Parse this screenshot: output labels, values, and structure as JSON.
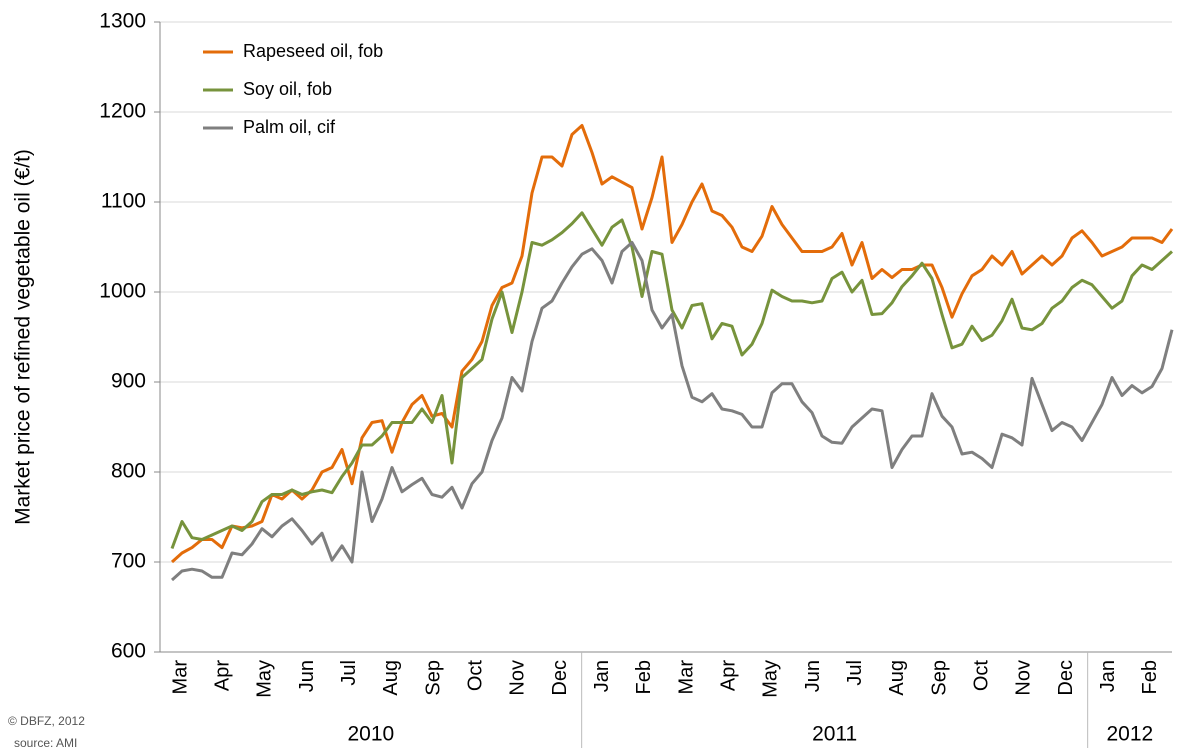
{
  "chart_data": {
    "type": "line",
    "y_label": "Market price of refined vegetable oil (€/t)",
    "ylim": [
      600,
      1300
    ],
    "yticks": [
      600,
      700,
      800,
      900,
      1000,
      1100,
      1200,
      1300
    ],
    "grid": true,
    "legend": "upper left",
    "years": [
      {
        "label": "2010",
        "months": [
          "Mar",
          "Apr",
          "May",
          "Jun",
          "Jul",
          "Aug",
          "Sep",
          "Oct",
          "Nov",
          "Dec"
        ]
      },
      {
        "label": "2011",
        "months": [
          "Jan",
          "Feb",
          "Mar",
          "Apr",
          "May",
          "Jun",
          "Jul",
          "Aug",
          "Sep",
          "Oct",
          "Nov",
          "Dec"
        ]
      },
      {
        "label": "2012",
        "months": [
          "Jan",
          "Feb"
        ]
      }
    ],
    "series": [
      {
        "name": "Rapeseed oil, fob",
        "color": "#e36c0a",
        "values": [
          700,
          710,
          716,
          725,
          725,
          716,
          740,
          738,
          740,
          745,
          775,
          770,
          780,
          770,
          780,
          800,
          805,
          825,
          787,
          838,
          855,
          857,
          822,
          855,
          875,
          885,
          862,
          865,
          850,
          912,
          925,
          945,
          985,
          1005,
          1010,
          1040,
          1110,
          1150,
          1150,
          1140,
          1175,
          1185,
          1155,
          1120,
          1128,
          1122,
          1116,
          1070,
          1105,
          1150,
          1055,
          1075,
          1100,
          1120,
          1090,
          1085,
          1072,
          1050,
          1045,
          1062,
          1095,
          1075,
          1060,
          1045,
          1045,
          1045,
          1050,
          1065,
          1030,
          1055,
          1015,
          1025,
          1016,
          1025,
          1025,
          1030,
          1030,
          1005,
          972,
          998,
          1018,
          1025,
          1040,
          1030,
          1045,
          1020,
          1030,
          1040,
          1030,
          1040,
          1060,
          1068,
          1055,
          1040,
          1045,
          1050,
          1060,
          1060,
          1060,
          1055,
          1070
        ]
      },
      {
        "name": "Soy oil, fob",
        "color": "#77933c",
        "values": [
          715,
          745,
          727,
          725,
          730,
          735,
          740,
          735,
          745,
          767,
          775,
          775,
          780,
          775,
          778,
          780,
          777,
          795,
          810,
          830,
          830,
          840,
          855,
          855,
          855,
          870,
          855,
          885,
          810,
          905,
          915,
          925,
          970,
          1000,
          955,
          1000,
          1055,
          1052,
          1058,
          1066,
          1076,
          1088,
          1070,
          1052,
          1072,
          1080,
          1050,
          995,
          1045,
          1042,
          980,
          960,
          985,
          987,
          948,
          965,
          962,
          930,
          942,
          965,
          1002,
          995,
          990,
          990,
          988,
          990,
          1015,
          1022,
          1000,
          1013,
          975,
          976,
          988,
          1006,
          1018,
          1032,
          1015,
          975,
          938,
          942,
          962,
          946,
          952,
          968,
          992,
          960,
          958,
          965,
          982,
          990,
          1005,
          1013,
          1008,
          995,
          982,
          990,
          1018,
          1030,
          1025,
          1035,
          1045
        ]
      },
      {
        "name": "Palm oil, cif",
        "color": "#7f7f7f",
        "values": [
          680,
          690,
          692,
          690,
          683,
          683,
          710,
          708,
          720,
          737,
          728,
          740,
          748,
          735,
          720,
          732,
          702,
          718,
          700,
          800,
          745,
          770,
          805,
          778,
          786,
          793,
          775,
          772,
          783,
          760,
          787,
          800,
          835,
          860,
          905,
          890,
          945,
          982,
          990,
          1010,
          1028,
          1042,
          1048,
          1035,
          1010,
          1045,
          1055,
          1035,
          980,
          960,
          975,
          918,
          883,
          878,
          887,
          870,
          868,
          864,
          850,
          850,
          888,
          898,
          898,
          878,
          866,
          840,
          833,
          832,
          850,
          860,
          870,
          868,
          805,
          825,
          840,
          840,
          887,
          862,
          850,
          820,
          822,
          815,
          805,
          842,
          838,
          830,
          904,
          875,
          846,
          855,
          850,
          835,
          855,
          875,
          905,
          885,
          896,
          888,
          895,
          915,
          958
        ]
      }
    ],
    "notes": [
      "© DBFZ, 2012",
      "source: AMI"
    ]
  }
}
